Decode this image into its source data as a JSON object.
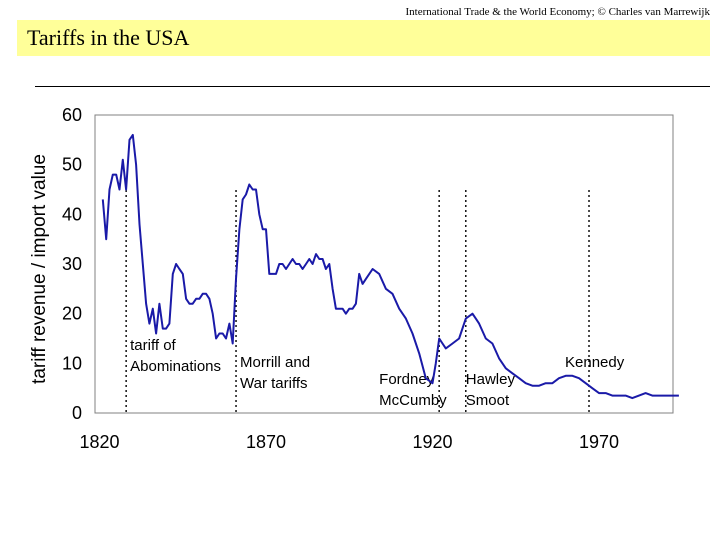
{
  "header": {
    "credit": "International Trade & the World Economy;  © Charles van Marrewijk"
  },
  "slide": {
    "title": "Tariffs in the USA"
  },
  "chart_data": {
    "type": "line",
    "title": "Tariffs in the USA",
    "xlabel": "",
    "ylabel": "tariff revenue / import value",
    "xlim": [
      1820,
      1995
    ],
    "ylim": [
      0,
      60
    ],
    "x_ticks": [
      1820,
      1870,
      1920,
      1970
    ],
    "y_ticks": [
      0,
      10,
      20,
      30,
      40,
      50,
      60
    ],
    "grid": false,
    "color": "#1a1aa8",
    "series": [
      {
        "name": "tariff revenue / import value",
        "x": [
          1821,
          1822,
          1823,
          1824,
          1825,
          1826,
          1827,
          1828,
          1829,
          1830,
          1831,
          1832,
          1833,
          1834,
          1835,
          1836,
          1837,
          1838,
          1839,
          1840,
          1841,
          1842,
          1843,
          1844,
          1845,
          1846,
          1847,
          1848,
          1849,
          1850,
          1851,
          1852,
          1853,
          1854,
          1855,
          1856,
          1857,
          1858,
          1859,
          1860,
          1861,
          1862,
          1863,
          1864,
          1865,
          1866,
          1867,
          1868,
          1869,
          1870,
          1871,
          1872,
          1873,
          1874,
          1875,
          1876,
          1877,
          1878,
          1879,
          1880,
          1881,
          1882,
          1883,
          1884,
          1885,
          1886,
          1887,
          1888,
          1889,
          1890,
          1891,
          1892,
          1893,
          1894,
          1895,
          1896,
          1897,
          1898,
          1899,
          1900,
          1902,
          1904,
          1906,
          1908,
          1910,
          1912,
          1914,
          1916,
          1918,
          1920,
          1921,
          1922,
          1923,
          1924,
          1926,
          1928,
          1930,
          1932,
          1933,
          1934,
          1936,
          1938,
          1940,
          1942,
          1944,
          1946,
          1948,
          1950,
          1952,
          1954,
          1956,
          1958,
          1960,
          1962,
          1964,
          1966,
          1968,
          1970,
          1972,
          1974,
          1976,
          1978,
          1980,
          1982,
          1984,
          1986,
          1988,
          1990,
          1992,
          1994
        ],
        "values": [
          43,
          35,
          45,
          48,
          48,
          45,
          51,
          45,
          55,
          56,
          50,
          38,
          30,
          22,
          18,
          21,
          16,
          22,
          17,
          17,
          18,
          28,
          30,
          29,
          28,
          23,
          22,
          22,
          23,
          23,
          24,
          24,
          23,
          20,
          15,
          16,
          16,
          15,
          18,
          14,
          27,
          37,
          43,
          44,
          46,
          45,
          45,
          40,
          37,
          37,
          28,
          28,
          28,
          30,
          30,
          29,
          30,
          31,
          30,
          30,
          29,
          30,
          31,
          30,
          32,
          31,
          31,
          29,
          30,
          25,
          21,
          21,
          21,
          20,
          21,
          21,
          22,
          28,
          26,
          27,
          29,
          28,
          25,
          24,
          21,
          19,
          16,
          12,
          7,
          6,
          10,
          15,
          14,
          13,
          14,
          15,
          19,
          20,
          19,
          18,
          15,
          14,
          11,
          9,
          8,
          7,
          6,
          5.5,
          5.5,
          6,
          6,
          7,
          7.5,
          7.5,
          7,
          6,
          5,
          4,
          4,
          3.5,
          3.5,
          3.5,
          3,
          3.5,
          4,
          3.5,
          3.5,
          3.5,
          3.5,
          3.5
        ]
      }
    ],
    "event_lines": [
      {
        "year": 1828,
        "label_lines": [
          "tariff of",
          "Abominations"
        ]
      },
      {
        "year": 1861,
        "label_lines": [
          "Morrill and",
          "War tariffs"
        ]
      },
      {
        "year": 1922,
        "label_lines": [
          "Fordney",
          "McCumby"
        ]
      },
      {
        "year": 1930,
        "label_lines": [
          "Hawley",
          "Smoot"
        ]
      },
      {
        "year": 1967,
        "label_lines": [
          "Kennedy"
        ]
      }
    ]
  }
}
